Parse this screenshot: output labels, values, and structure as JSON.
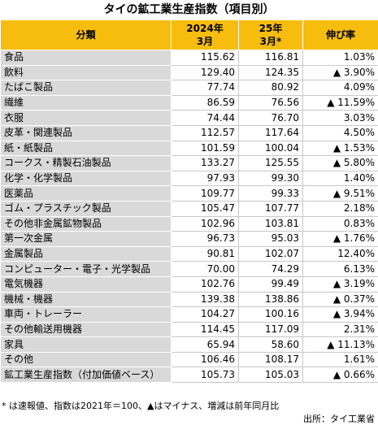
{
  "title": "タイの鉱工業生産指数（項目別）",
  "table": {
    "header": [
      "分類",
      "2024年\n3月",
      "25年\n3月*",
      "伸び率"
    ],
    "rows": [
      [
        "食品",
        "115.62",
        "116.81",
        "1.03%"
      ],
      [
        "飲料",
        "129.40",
        "124.35",
        "▲ 3.90%"
      ],
      [
        "たばこ製品",
        "77.74",
        "80.92",
        "4.09%"
      ],
      [
        "繊維",
        "86.59",
        "76.56",
        "▲ 11.59%"
      ],
      [
        "衣服",
        "74.44",
        "76.70",
        "3.03%"
      ],
      [
        "皮革・関連製品",
        "112.57",
        "117.64",
        "4.50%"
      ],
      [
        "紙・紙製品",
        "101.59",
        "100.04",
        "▲ 1.53%"
      ],
      [
        "コークス・精製石油製品",
        "133.27",
        "125.55",
        "▲ 5.80%"
      ],
      [
        "化学・化学製品",
        "97.93",
        "99.30",
        "1.40%"
      ],
      [
        "医薬品",
        "109.77",
        "99.33",
        "▲ 9.51%"
      ],
      [
        "ゴム・プラスチック製品",
        "105.47",
        "107.77",
        "2.18%"
      ],
      [
        "その他非金属鉱物製品",
        "102.96",
        "103.81",
        "0.83%"
      ],
      [
        "第一次金属",
        "96.73",
        "95.03",
        "▲ 1.76%"
      ],
      [
        "金属製品",
        "90.81",
        "102.07",
        "12.40%"
      ],
      [
        "コンピューター・電子・光学製品",
        "70.00",
        "74.29",
        "6.13%"
      ],
      [
        "電気機器",
        "102.76",
        "99.49",
        "▲ 3.19%"
      ],
      [
        "機械・機器",
        "139.38",
        "138.86",
        "▲ 0.37%"
      ],
      [
        "車両・トレーラー",
        "104.27",
        "100.16",
        "▲ 3.94%"
      ],
      [
        "その他輸送用機器",
        "114.45",
        "117.09",
        "2.31%"
      ],
      [
        "家具",
        "65.94",
        "58.60",
        "▲ 11.13%"
      ],
      [
        "その他",
        "106.46",
        "108.17",
        "1.61%"
      ],
      [
        "鉱工業生産指数（付加価値ベース）",
        "105.73",
        "105.03",
        "▲ 0.66%"
      ]
    ]
  },
  "footnote": "* は速報値、指数は2021年＝100、▲はマイナス、増減は前年同月比",
  "source": "出所：タイ工業省"
}
